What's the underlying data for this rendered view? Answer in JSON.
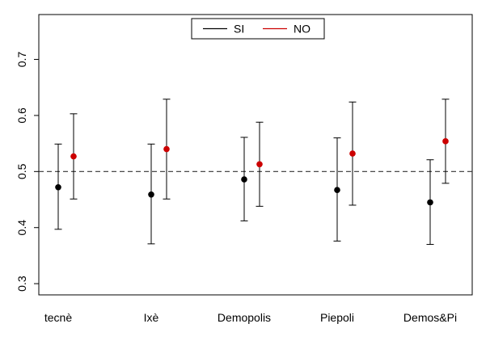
{
  "chart_data": {
    "type": "scatter",
    "subtype": "point-with-error-bars",
    "categories": [
      "tecnè",
      "Ixè",
      "Demopolis",
      "Piepoli",
      "Demos&Pi"
    ],
    "series": [
      {
        "name": "SI",
        "color": "#000000",
        "values": [
          0.472,
          0.459,
          0.486,
          0.467,
          0.445
        ],
        "lower": [
          0.397,
          0.371,
          0.412,
          0.376,
          0.37
        ],
        "upper": [
          0.549,
          0.549,
          0.561,
          0.56,
          0.521
        ]
      },
      {
        "name": "NO",
        "color": "#cc0000",
        "values": [
          0.527,
          0.54,
          0.513,
          0.532,
          0.554
        ],
        "lower": [
          0.451,
          0.451,
          0.438,
          0.44,
          0.479
        ],
        "upper": [
          0.603,
          0.629,
          0.588,
          0.624,
          0.629
        ]
      }
    ],
    "reference_line": {
      "value": 0.5,
      "style": "dashed"
    },
    "ylim": [
      0.28,
      0.78
    ],
    "yticks": [
      "0.3",
      "0.4",
      "0.5",
      "0.6",
      "0.7"
    ],
    "legend": {
      "position": "top-center",
      "entries": [
        "SI",
        "NO"
      ]
    },
    "grid": false,
    "title": "",
    "xlabel": "",
    "ylabel": ""
  }
}
